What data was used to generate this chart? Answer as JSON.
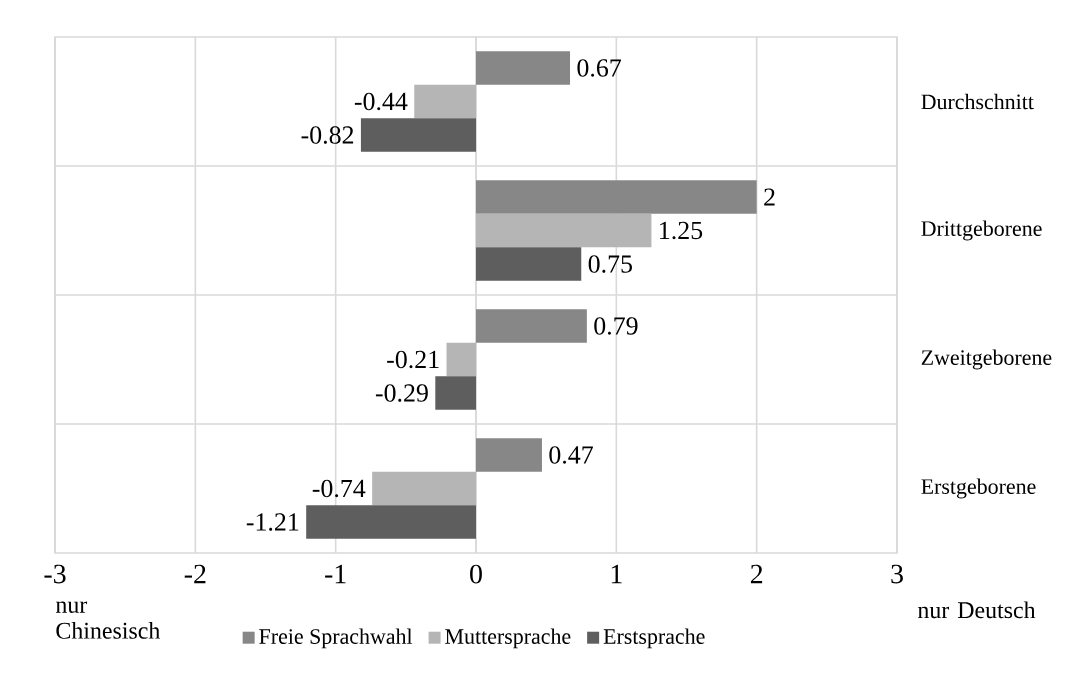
{
  "chart_data": {
    "type": "bar",
    "orientation": "horizontal",
    "categories": [
      "Durchschnitt",
      "Drittgeborene",
      "Zweitgeborene",
      "Erstgeborene"
    ],
    "series": [
      {
        "name": "Freie Sprachwahl",
        "color": "#878787",
        "values": [
          0.67,
          2,
          0.79,
          0.47
        ]
      },
      {
        "name": "Muttersprache",
        "color": "#b5b5b5",
        "values": [
          -0.44,
          1.25,
          -0.21,
          -0.74
        ]
      },
      {
        "name": "Erstsprache",
        "color": "#5e5e5e",
        "values": [
          -0.82,
          0.75,
          -0.29,
          -1.21
        ]
      }
    ],
    "xlim": [
      -3,
      3
    ],
    "xticks": [
      -3,
      -2,
      -1,
      0,
      1,
      2,
      3
    ],
    "grid": true,
    "legend": "bottom",
    "data_labels": true,
    "annotations": [
      "nur Chinesisch",
      "nur Deutsch"
    ]
  }
}
